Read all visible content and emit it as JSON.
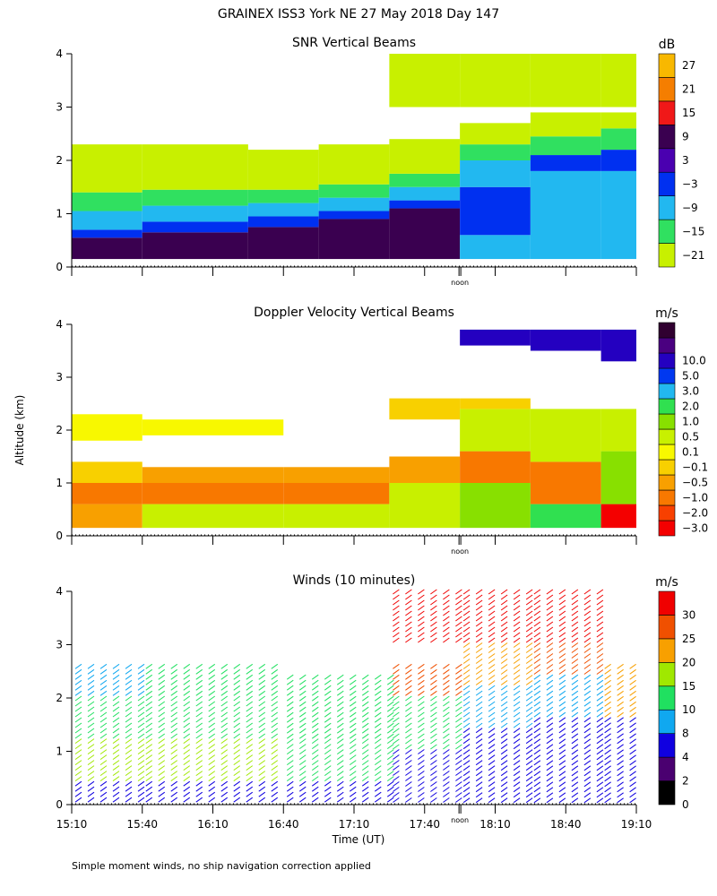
{
  "figure_title": "GRAINEX ISS3 York NE  27 May 2018 Day 147",
  "y_axis_label": "Altitude (km)",
  "x_axis_label": "Time (UT)",
  "noon_label": "noon",
  "footnote": "Simple moment winds, no ship navigation correction applied",
  "colors": {
    "background": "#ffffff",
    "snr_scale": [
      "#c8f000",
      "#30e060",
      "#22b8f0",
      "#0030f0",
      "#4a00b0",
      "#3a0050",
      "#f01818",
      "#f57e00",
      "#f8b800"
    ],
    "velocity_scale": [
      "#f40000",
      "#f84000",
      "#f87800",
      "#f8a000",
      "#f8d000",
      "#f8f800",
      "#c8f000",
      "#88e000",
      "#30e050",
      "#22b8f0",
      "#0038f0",
      "#2400c0",
      "#4a0080",
      "#300030"
    ],
    "wind_scale": [
      "#000000",
      "#4a0070",
      "#1000e0",
      "#10a8f0",
      "#20e060",
      "#a0e800",
      "#f8a000",
      "#f05000",
      "#f00000"
    ]
  },
  "chart_data": [
    {
      "type": "heatmap",
      "title": "SNR Vertical Beams",
      "colorbar_unit": "dB",
      "colorbar_tick_labels": [
        "27",
        "21",
        "15",
        "9",
        "3",
        "−3",
        "−9",
        "−15",
        "−21"
      ],
      "colorbar_levels": [
        -21,
        -15,
        -9,
        -3,
        3,
        9,
        15,
        21,
        27
      ],
      "xlabel": "Time (UT)",
      "ylabel": "Altitude (km)",
      "xlim": [
        "15:10",
        "19:10"
      ],
      "ylim": [
        0,
        4
      ],
      "y_tick_labels": [
        "0",
        "1",
        "2",
        "3",
        "4"
      ],
      "noon_marker_time": "17:55",
      "profile": [
        {
          "time": "15:10",
          "bands": [
            [
              0.15,
              0.55,
              9
            ],
            [
              0.55,
              0.7,
              -3
            ],
            [
              0.7,
              1.05,
              -9
            ],
            [
              1.05,
              1.4,
              -15
            ],
            [
              1.4,
              2.3,
              -21
            ]
          ]
        },
        {
          "time": "16:10",
          "bands": [
            [
              0.15,
              0.65,
              9
            ],
            [
              0.65,
              0.85,
              -3
            ],
            [
              0.85,
              1.15,
              -9
            ],
            [
              1.15,
              1.45,
              -15
            ],
            [
              1.45,
              2.3,
              -21
            ]
          ]
        },
        {
          "time": "16:40",
          "bands": [
            [
              0.15,
              0.75,
              9
            ],
            [
              0.75,
              0.95,
              -3
            ],
            [
              0.95,
              1.2,
              -9
            ],
            [
              1.2,
              1.45,
              -15
            ],
            [
              1.45,
              2.2,
              -21
            ]
          ]
        },
        {
          "time": "17:10",
          "bands": [
            [
              0.15,
              0.9,
              9
            ],
            [
              0.9,
              1.05,
              -3
            ],
            [
              1.05,
              1.3,
              -9
            ],
            [
              1.3,
              1.55,
              -15
            ],
            [
              1.55,
              2.3,
              -21
            ]
          ]
        },
        {
          "time": "17:40",
          "bands": [
            [
              0.15,
              1.1,
              9
            ],
            [
              1.1,
              1.25,
              -3
            ],
            [
              1.25,
              1.5,
              -9
            ],
            [
              1.5,
              1.75,
              -15
            ],
            [
              1.75,
              2.4,
              -21
            ],
            [
              3.0,
              4.0,
              -21
            ]
          ]
        },
        {
          "time": "18:10",
          "bands": [
            [
              0.15,
              0.6,
              -9
            ],
            [
              0.6,
              1.5,
              -3
            ],
            [
              1.5,
              2.0,
              -9
            ],
            [
              2.0,
              2.3,
              -15
            ],
            [
              2.3,
              2.7,
              -21
            ],
            [
              3.0,
              4.0,
              -21
            ]
          ]
        },
        {
          "time": "18:40",
          "bands": [
            [
              0.15,
              1.8,
              -9
            ],
            [
              1.8,
              2.1,
              -3
            ],
            [
              2.1,
              2.45,
              -15
            ],
            [
              2.45,
              2.9,
              -21
            ],
            [
              3.0,
              4.0,
              -21
            ]
          ]
        },
        {
          "time": "19:10",
          "bands": [
            [
              0.15,
              1.8,
              -9
            ],
            [
              1.8,
              2.2,
              -3
            ],
            [
              2.2,
              2.6,
              -15
            ],
            [
              2.6,
              2.9,
              -21
            ],
            [
              3.0,
              4.0,
              -21
            ]
          ]
        }
      ]
    },
    {
      "type": "heatmap",
      "title": "Doppler Velocity Vertical Beams",
      "colorbar_unit": "m/s",
      "colorbar_tick_labels": [
        "10.0",
        "5.0",
        "3.0",
        "2.0",
        "1.0",
        "0.5",
        "0.1",
        "−0.1",
        "−0.5",
        "−1.0",
        "−2.0",
        "−3.0"
      ],
      "colorbar_levels": [
        -3.0,
        -2.0,
        -1.0,
        -0.5,
        -0.1,
        0.1,
        0.5,
        1.0,
        2.0,
        3.0,
        5.0,
        10.0
      ],
      "xlabel": "Time (UT)",
      "ylabel": "Altitude (km)",
      "xlim": [
        "15:10",
        "19:10"
      ],
      "ylim": [
        0,
        4
      ],
      "y_tick_labels": [
        "0",
        "1",
        "2",
        "3",
        "4"
      ],
      "noon_marker_time": "17:55",
      "profile": [
        {
          "time": "15:10",
          "bands": [
            [
              0.15,
              0.6,
              -0.5
            ],
            [
              0.6,
              1.0,
              -1.0
            ],
            [
              1.0,
              1.4,
              -0.1
            ],
            [
              1.8,
              2.3,
              0.1
            ]
          ]
        },
        {
          "time": "16:10",
          "bands": [
            [
              0.15,
              0.6,
              0.5
            ],
            [
              0.6,
              1.0,
              -1.0
            ],
            [
              1.0,
              1.3,
              -0.5
            ],
            [
              1.9,
              2.2,
              0.1
            ]
          ]
        },
        {
          "time": "17:10",
          "bands": [
            [
              0.15,
              0.6,
              0.5
            ],
            [
              0.6,
              1.0,
              -1.0
            ],
            [
              1.0,
              1.3,
              -0.5
            ]
          ]
        },
        {
          "time": "17:40",
          "bands": [
            [
              0.15,
              1.0,
              0.5
            ],
            [
              1.0,
              1.5,
              -0.5
            ],
            [
              2.2,
              2.6,
              -0.1
            ]
          ]
        },
        {
          "time": "18:10",
          "bands": [
            [
              0.15,
              1.0,
              1.0
            ],
            [
              1.0,
              1.6,
              -1.0
            ],
            [
              1.6,
              2.4,
              0.5
            ],
            [
              2.4,
              2.6,
              -0.1
            ],
            [
              3.6,
              3.9,
              10.0
            ]
          ]
        },
        {
          "time": "18:40",
          "bands": [
            [
              0.15,
              0.6,
              2.0
            ],
            [
              0.6,
              1.4,
              -1.0
            ],
            [
              1.4,
              2.4,
              0.5
            ],
            [
              3.5,
              3.9,
              10.0
            ]
          ]
        },
        {
          "time": "19:10",
          "bands": [
            [
              0.15,
              0.6,
              -3.0
            ],
            [
              0.6,
              1.6,
              1.0
            ],
            [
              1.6,
              2.4,
              0.5
            ],
            [
              3.3,
              3.9,
              10.0
            ]
          ]
        }
      ]
    },
    {
      "type": "wind_barbs",
      "title": "Winds (10 minutes)",
      "colorbar_unit": "m/s",
      "colorbar_tick_labels": [
        "30",
        "25",
        "20",
        "15",
        "10",
        "8",
        "4",
        "2",
        "0"
      ],
      "colorbar_levels": [
        0,
        2,
        4,
        8,
        10,
        15,
        20,
        25,
        30
      ],
      "xlabel": "Time (UT)",
      "ylabel": "Altitude (km)",
      "xlim": [
        "15:10",
        "19:10"
      ],
      "ylim": [
        0,
        4
      ],
      "x_tick_labels": [
        "15:10",
        "15:40",
        "16:10",
        "16:40",
        "17:10",
        "17:40",
        "18:10",
        "18:40",
        "19:10"
      ],
      "y_tick_labels": [
        "0",
        "1",
        "2",
        "3",
        "4"
      ],
      "noon_marker_time": "17:55",
      "profile": [
        {
          "time": "15:10",
          "bands": [
            [
              0.0,
              0.4,
              4
            ],
            [
              0.4,
              1.2,
              15
            ],
            [
              1.2,
              2.0,
              10
            ],
            [
              2.0,
              2.6,
              8
            ]
          ]
        },
        {
          "time": "16:10",
          "bands": [
            [
              0.0,
              0.4,
              4
            ],
            [
              0.4,
              1.2,
              15
            ],
            [
              1.2,
              2.0,
              10
            ],
            [
              2.0,
              2.6,
              10
            ]
          ]
        },
        {
          "time": "17:10",
          "bands": [
            [
              0.0,
              0.4,
              4
            ],
            [
              0.4,
              1.2,
              10
            ],
            [
              1.2,
              2.4,
              10
            ]
          ]
        },
        {
          "time": "17:40",
          "bands": [
            [
              0.0,
              1.0,
              4
            ],
            [
              1.0,
              2.0,
              10
            ],
            [
              2.0,
              2.6,
              25
            ],
            [
              3.0,
              4.0,
              30
            ]
          ]
        },
        {
          "time": "18:10",
          "bands": [
            [
              0.0,
              1.4,
              4
            ],
            [
              1.4,
              2.2,
              8
            ],
            [
              2.2,
              3.0,
              20
            ],
            [
              3.0,
              4.0,
              30
            ]
          ]
        },
        {
          "time": "18:40",
          "bands": [
            [
              0.0,
              1.6,
              4
            ],
            [
              1.6,
              2.4,
              8
            ],
            [
              2.4,
              3.0,
              25
            ],
            [
              3.0,
              4.0,
              30
            ]
          ]
        },
        {
          "time": "19:10",
          "bands": [
            [
              0.0,
              1.6,
              4
            ],
            [
              1.6,
              2.6,
              20
            ]
          ]
        }
      ]
    }
  ]
}
